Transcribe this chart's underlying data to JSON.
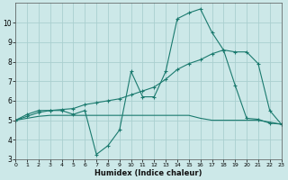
{
  "xlabel": "Humidex (Indice chaleur)",
  "bg_color": "#cce8e8",
  "grid_color": "#aacfcf",
  "line_color": "#1a7a6e",
  "x_ticks": [
    0,
    1,
    2,
    3,
    4,
    5,
    6,
    7,
    8,
    9,
    10,
    11,
    12,
    13,
    14,
    15,
    16,
    17,
    18,
    19,
    20,
    21,
    22,
    23
  ],
  "y_ticks": [
    3,
    4,
    5,
    6,
    7,
    8,
    9,
    10
  ],
  "xlim": [
    0,
    23
  ],
  "ylim": [
    3,
    11
  ],
  "line1_x": [
    0,
    1,
    2,
    3,
    4,
    5,
    6,
    7,
    8,
    9,
    10,
    11,
    12,
    13,
    14,
    15,
    16,
    17,
    18,
    19,
    20,
    21,
    22,
    23
  ],
  "line1_y": [
    5.0,
    5.3,
    5.5,
    5.5,
    5.5,
    5.3,
    5.5,
    3.25,
    3.7,
    4.5,
    7.5,
    6.2,
    6.2,
    7.5,
    10.2,
    10.5,
    10.7,
    9.5,
    8.6,
    6.8,
    5.1,
    5.05,
    4.85,
    4.8
  ],
  "line2_x": [
    0,
    1,
    2,
    3,
    4,
    5,
    6,
    7,
    8,
    9,
    10,
    11,
    12,
    13,
    14,
    15,
    16,
    17,
    18,
    19,
    20,
    21,
    22,
    23
  ],
  "line2_y": [
    5.0,
    5.2,
    5.4,
    5.5,
    5.55,
    5.6,
    5.8,
    5.9,
    6.0,
    6.1,
    6.3,
    6.5,
    6.7,
    7.1,
    7.6,
    7.9,
    8.1,
    8.4,
    8.6,
    8.5,
    8.5,
    7.9,
    5.5,
    4.8
  ],
  "line3_x": [
    0,
    1,
    2,
    3,
    4,
    5,
    6,
    7,
    8,
    9,
    10,
    11,
    12,
    13,
    14,
    15,
    16,
    17,
    18,
    19,
    20,
    21,
    22,
    23
  ],
  "line3_y": [
    5.0,
    5.1,
    5.2,
    5.25,
    5.25,
    5.25,
    5.25,
    5.25,
    5.25,
    5.25,
    5.25,
    5.25,
    5.25,
    5.25,
    5.25,
    5.25,
    5.1,
    5.0,
    5.0,
    5.0,
    5.0,
    5.0,
    4.9,
    4.8
  ]
}
